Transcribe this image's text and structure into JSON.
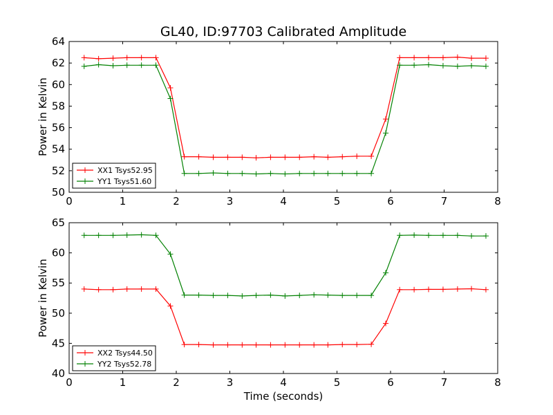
{
  "figure": {
    "title": "GL40, ID:97703 Calibrated Amplitude",
    "background": "#ffffff"
  },
  "chart_data": [
    {
      "type": "line",
      "title": "GL40, ID:97703 Calibrated Amplitude",
      "xlabel": "",
      "ylabel": "Power in Kelvin",
      "xlim": [
        0,
        8
      ],
      "ylim": [
        50,
        64
      ],
      "xticks": [
        0,
        1,
        2,
        3,
        4,
        5,
        6,
        7,
        8
      ],
      "xtick_labels": [
        "0",
        "1",
        "2",
        "3",
        "4",
        "5",
        "6",
        "7",
        "8"
      ],
      "yticks": [
        50,
        52,
        54,
        56,
        58,
        60,
        62,
        64
      ],
      "ytick_labels": [
        "50",
        "52",
        "54",
        "56",
        "58",
        "60",
        "62",
        "64"
      ],
      "grid": false,
      "legend_position": "lower-left",
      "x": [
        0.28,
        0.55,
        0.82,
        1.08,
        1.35,
        1.62,
        1.89,
        2.15,
        2.42,
        2.69,
        2.96,
        3.23,
        3.49,
        3.76,
        4.03,
        4.3,
        4.57,
        4.83,
        5.1,
        5.37,
        5.64,
        5.91,
        6.17,
        6.44,
        6.71,
        6.98,
        7.25,
        7.51,
        7.78
      ],
      "series": [
        {
          "name": "XX1 Tsys52.95",
          "color": "#ff0000",
          "values": [
            62.5,
            62.4,
            62.45,
            62.5,
            62.5,
            62.5,
            59.7,
            53.3,
            53.3,
            53.25,
            53.25,
            53.25,
            53.2,
            53.25,
            53.25,
            53.25,
            53.3,
            53.25,
            53.3,
            53.35,
            53.35,
            56.8,
            62.5,
            62.5,
            62.5,
            62.5,
            62.55,
            62.45,
            62.45
          ]
        },
        {
          "name": "YY1 Tsys51.60",
          "color": "#008000",
          "values": [
            61.7,
            61.85,
            61.75,
            61.8,
            61.8,
            61.8,
            58.7,
            51.75,
            51.75,
            51.8,
            51.75,
            51.75,
            51.7,
            51.75,
            51.7,
            51.75,
            51.75,
            51.75,
            51.75,
            51.75,
            51.75,
            55.5,
            61.8,
            61.8,
            61.85,
            61.75,
            61.7,
            61.75,
            61.7
          ]
        }
      ]
    },
    {
      "type": "line",
      "title": "",
      "xlabel": "Time (seconds)",
      "ylabel": "Power in Kelvin",
      "xlim": [
        0,
        8
      ],
      "ylim": [
        40,
        65
      ],
      "xticks": [
        0,
        1,
        2,
        3,
        4,
        5,
        6,
        7,
        8
      ],
      "xtick_labels": [
        "0",
        "1",
        "2",
        "3",
        "4",
        "5",
        "6",
        "7",
        "8"
      ],
      "yticks": [
        40,
        45,
        50,
        55,
        60,
        65
      ],
      "ytick_labels": [
        "40",
        "45",
        "50",
        "55",
        "60",
        "65"
      ],
      "grid": false,
      "legend_position": "lower-left",
      "x": [
        0.28,
        0.55,
        0.82,
        1.08,
        1.35,
        1.62,
        1.89,
        2.15,
        2.42,
        2.69,
        2.96,
        3.23,
        3.49,
        3.76,
        4.03,
        4.3,
        4.57,
        4.83,
        5.1,
        5.37,
        5.64,
        5.91,
        6.17,
        6.44,
        6.71,
        6.98,
        7.25,
        7.51,
        7.78
      ],
      "series": [
        {
          "name": "XX2 Tsys44.50",
          "color": "#ff0000",
          "values": [
            54.0,
            53.9,
            53.9,
            54.0,
            54.0,
            54.0,
            51.2,
            44.8,
            44.8,
            44.75,
            44.75,
            44.75,
            44.75,
            44.75,
            44.75,
            44.75,
            44.75,
            44.75,
            44.8,
            44.8,
            44.85,
            48.3,
            53.9,
            53.9,
            53.95,
            53.95,
            54.0,
            54.05,
            53.9
          ]
        },
        {
          "name": "YY2 Tsys52.78",
          "color": "#008000",
          "values": [
            62.9,
            62.9,
            62.9,
            62.95,
            63.0,
            62.9,
            59.8,
            53.0,
            53.0,
            52.95,
            52.95,
            52.85,
            52.95,
            53.0,
            52.85,
            52.95,
            53.05,
            53.0,
            52.95,
            52.95,
            52.95,
            56.7,
            62.9,
            62.95,
            62.9,
            62.9,
            62.9,
            62.8,
            62.8
          ]
        }
      ]
    }
  ]
}
